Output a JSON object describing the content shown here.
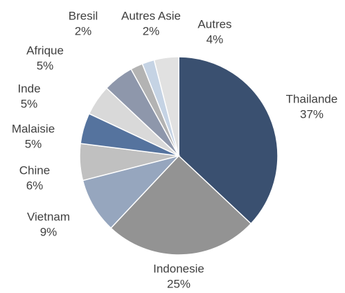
{
  "chart_data": {
    "type": "pie",
    "categories": [
      "Thailande",
      "Indonesie",
      "Vietnam",
      "Chine",
      "Malaisie",
      "Inde",
      "Afrique",
      "Bresil",
      "Autres Asie",
      "Autres"
    ],
    "values": [
      37,
      25,
      9,
      6,
      5,
      5,
      5,
      2,
      2,
      4
    ],
    "value_labels": [
      "37%",
      "25%",
      "9%",
      "6%",
      "5%",
      "5%",
      "5%",
      "2%",
      "2%",
      "4%"
    ],
    "colors": [
      "#3a5070",
      "#939393",
      "#96a6be",
      "#c0c0c0",
      "#55739e",
      "#d9d9d9",
      "#8e97ab",
      "#b3b3b3",
      "#c5d3e4",
      "#e1e1e1"
    ]
  }
}
